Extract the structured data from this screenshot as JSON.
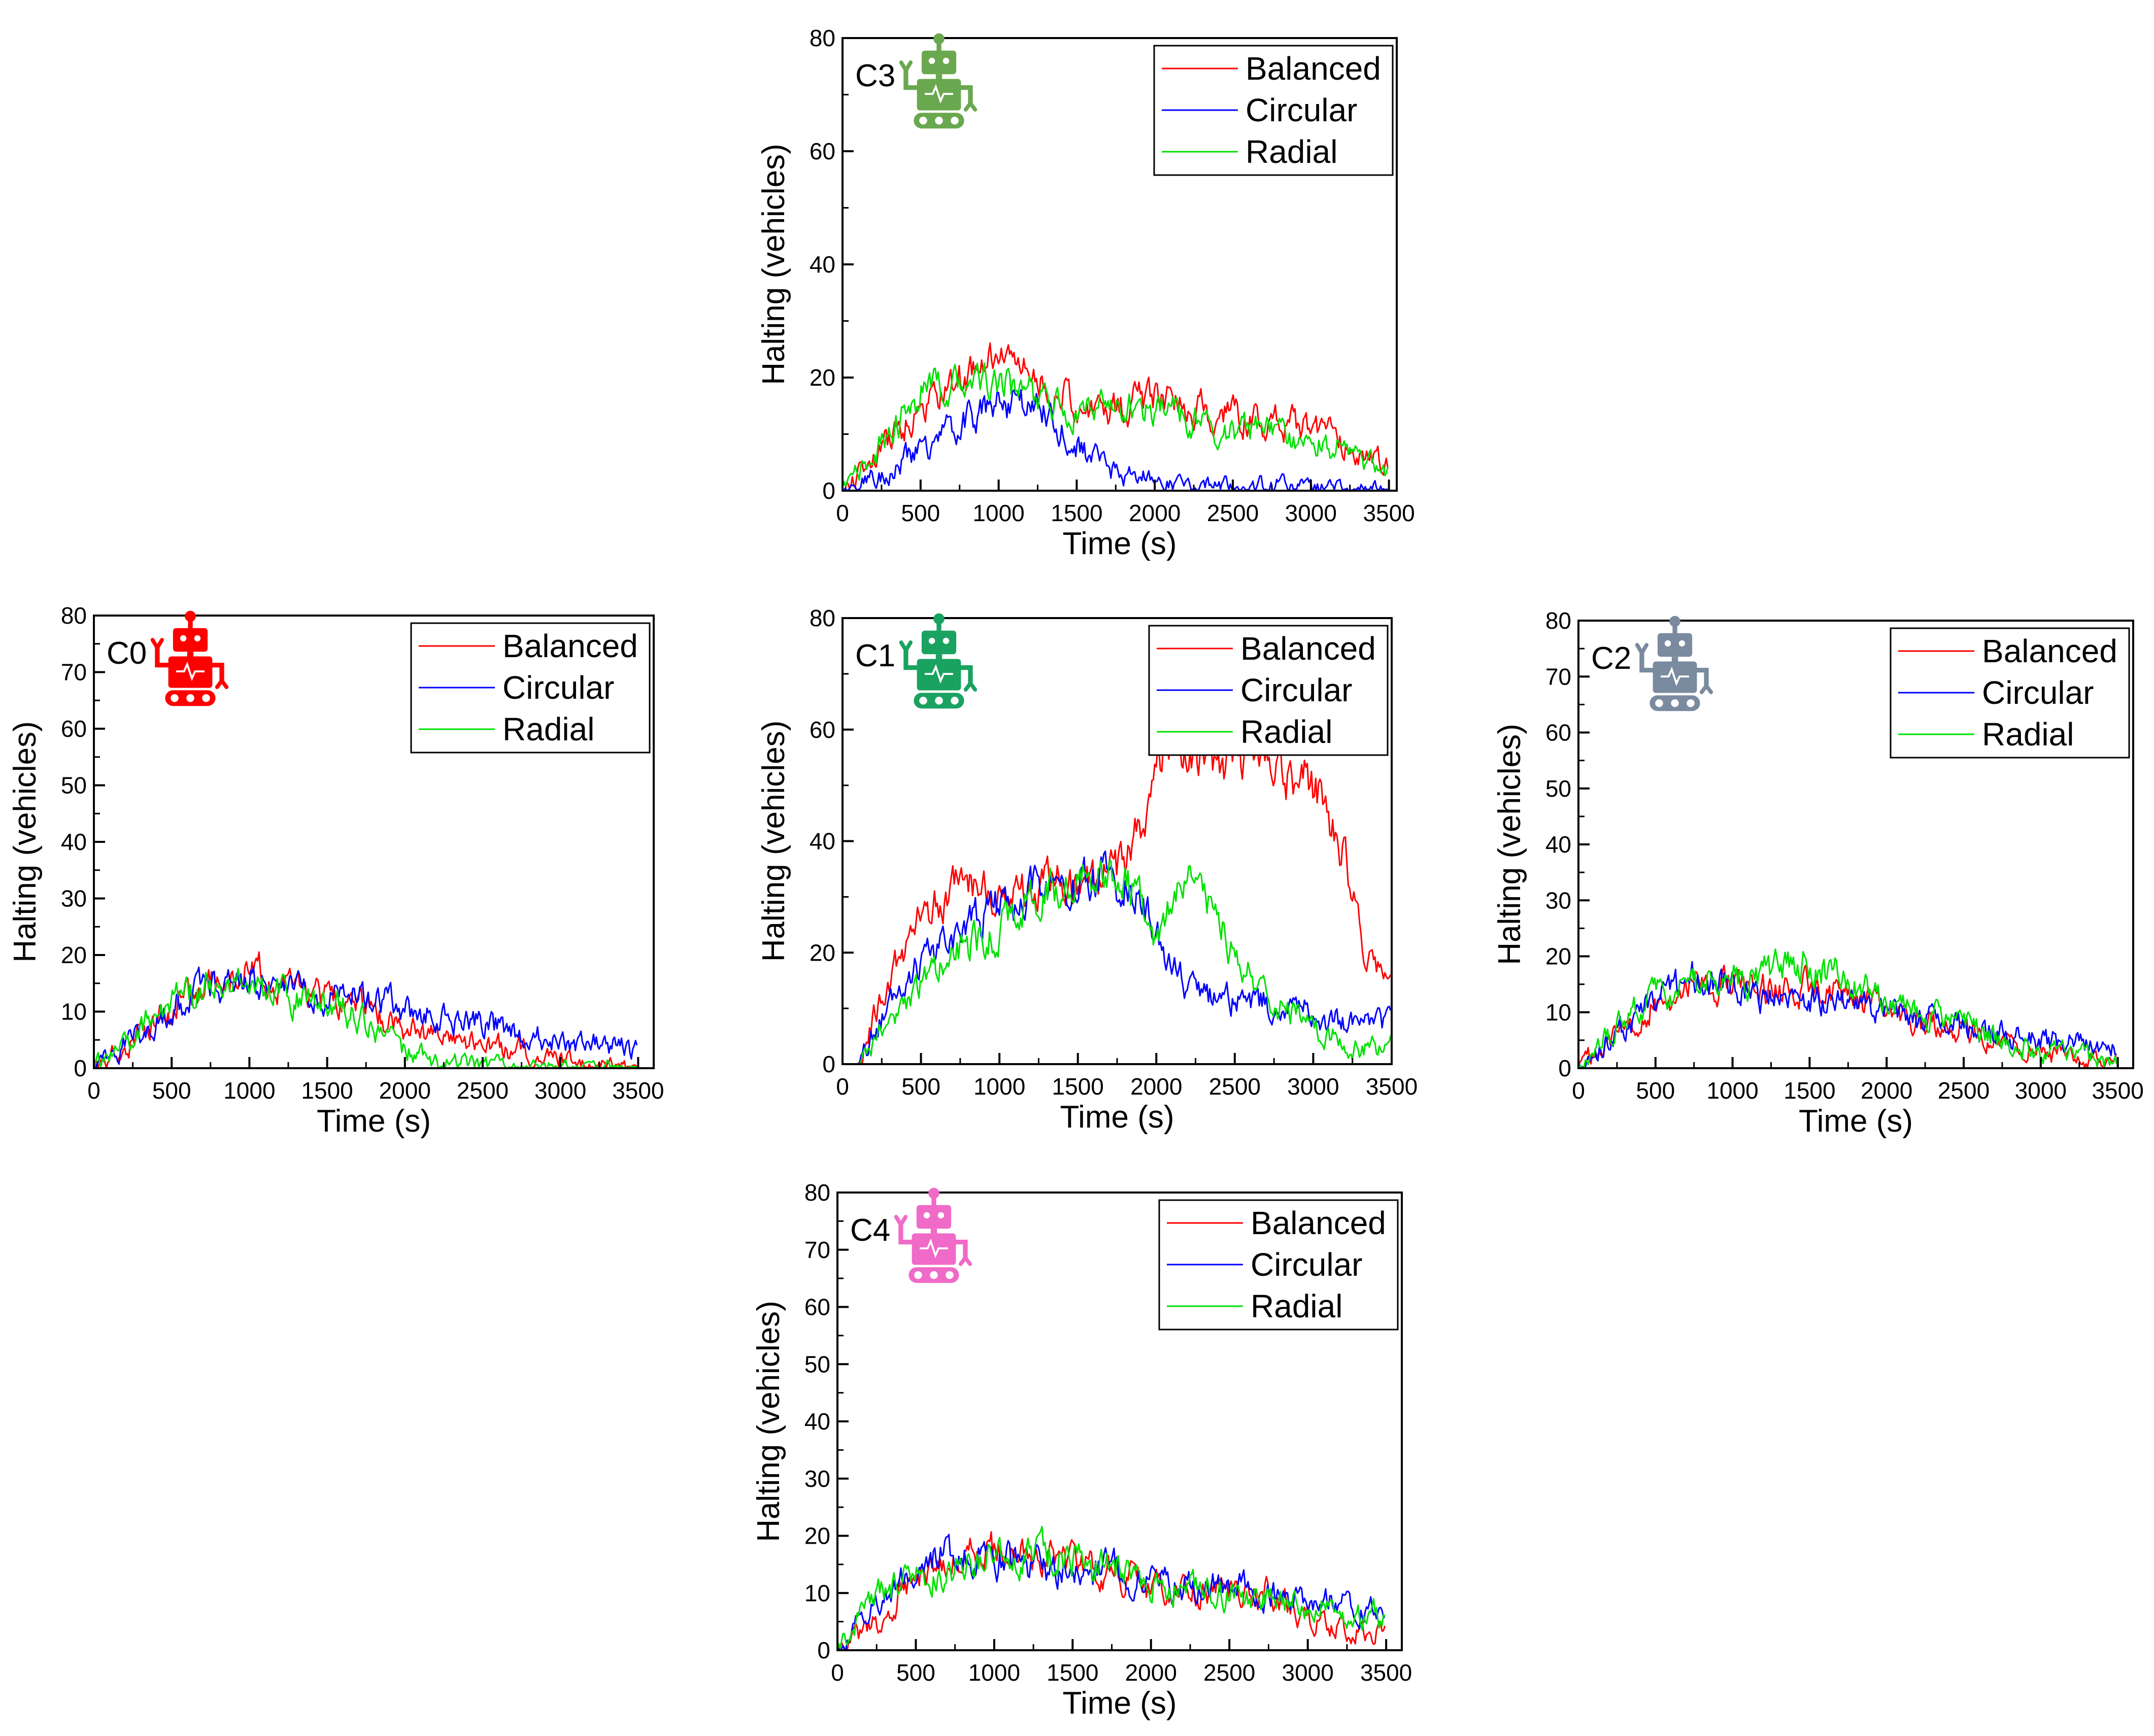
{
  "figure": {
    "series_styles": [
      {
        "name": "Balanced",
        "color": "#ff0000"
      },
      {
        "name": "Circular",
        "color": "#0000ff"
      },
      {
        "name": "Radial",
        "color": "#00e000"
      }
    ],
    "robot_icon": "robot-icon"
  },
  "chart_data": [
    {
      "id": "C3",
      "type": "line",
      "panel_label": "C3",
      "icon_color": "#6aa84f",
      "xlabel": "Time (s)",
      "ylabel": "Halting (vehicles)",
      "xlim": [
        0,
        3550
      ],
      "ylim": [
        0,
        80
      ],
      "x_ticks": [
        0,
        500,
        1000,
        1500,
        2000,
        2500,
        3000,
        3500
      ],
      "y_ticks": [
        0,
        20,
        40,
        60,
        80
      ],
      "legend": [
        "Balanced",
        "Circular",
        "Radial"
      ],
      "legend_position": "top-right",
      "x": [
        0,
        250,
        500,
        750,
        1000,
        1250,
        1500,
        1750,
        2000,
        2250,
        2500,
        2750,
        3000,
        3250,
        3500
      ],
      "series": [
        {
          "name": "Balanced",
          "values": [
            0,
            7,
            15,
            19,
            24,
            20,
            15,
            14,
            17,
            15,
            13,
            12,
            11,
            8,
            4
          ]
        },
        {
          "name": "Circular",
          "values": [
            0,
            3,
            7,
            12,
            15,
            15,
            8,
            3,
            2,
            1,
            1,
            1,
            0.5,
            0.5,
            0
          ]
        },
        {
          "name": "Radial",
          "values": [
            0,
            8,
            17,
            19,
            19,
            16,
            14,
            15,
            15,
            12,
            11,
            10,
            9,
            7,
            3
          ]
        }
      ]
    },
    {
      "id": "C0",
      "type": "line",
      "panel_label": "C0",
      "icon_color": "#ff0000",
      "xlabel": "Time (s)",
      "ylabel": "Halting (vehicles)",
      "xlim": [
        0,
        3600
      ],
      "ylim": [
        0,
        80
      ],
      "x_ticks": [
        0,
        500,
        1000,
        1500,
        2000,
        2500,
        3000,
        3500
      ],
      "y_ticks": [
        0,
        10,
        20,
        30,
        40,
        50,
        60,
        70,
        80
      ],
      "legend": [
        "Balanced",
        "Circular",
        "Radial"
      ],
      "legend_position": "top-right",
      "x": [
        0,
        250,
        500,
        750,
        1000,
        1250,
        1500,
        1750,
        2000,
        2250,
        2500,
        2750,
        3000,
        3250,
        3500
      ],
      "series": [
        {
          "name": "Balanced",
          "values": [
            0,
            5,
            11,
            15,
            18,
            14,
            12,
            10,
            7,
            5,
            4,
            3,
            2,
            1,
            0
          ]
        },
        {
          "name": "Circular",
          "values": [
            0,
            5,
            11,
            14,
            16,
            14,
            12,
            13,
            10,
            9,
            8,
            6,
            5,
            4,
            3
          ]
        },
        {
          "name": "Radial",
          "values": [
            0,
            6,
            12,
            15,
            15,
            12,
            12,
            8,
            3,
            1,
            1,
            0,
            0,
            0,
            0
          ]
        }
      ]
    },
    {
      "id": "C1",
      "type": "line",
      "panel_label": "C1",
      "icon_color": "#1aa260",
      "xlabel": "Time (s)",
      "ylabel": "Halting (vehicles)",
      "xlim": [
        0,
        3500
      ],
      "ylim": [
        0,
        80
      ],
      "x_ticks": [
        0,
        500,
        1000,
        1500,
        2000,
        2500,
        3000,
        3500
      ],
      "y_ticks": [
        0,
        20,
        40,
        60,
        80
      ],
      "legend": [
        "Balanced",
        "Circular",
        "Radial"
      ],
      "legend_position": "top-right",
      "x": [
        100,
        250,
        500,
        750,
        1000,
        1250,
        1500,
        1750,
        1900,
        2000,
        2100,
        2250,
        2500,
        2750,
        3000,
        3200,
        3300,
        3500
      ],
      "series": [
        {
          "name": "Balanced",
          "values": [
            0,
            12,
            27,
            32,
            31,
            33,
            33,
            35,
            42,
            55,
            57,
            54,
            55,
            54,
            50,
            38,
            22,
            13
          ]
        },
        {
          "name": "Circular",
          "values": [
            0,
            8,
            18,
            24,
            28,
            32,
            34,
            33,
            30,
            23,
            17,
            12,
            11,
            11,
            9,
            7,
            7,
            8
          ]
        },
        {
          "name": "Radial",
          "values": [
            0,
            6,
            14,
            20,
            24,
            30,
            33,
            33,
            31,
            22,
            28,
            35,
            19,
            11,
            7,
            4,
            3,
            3
          ]
        }
      ]
    },
    {
      "id": "C2",
      "type": "line",
      "panel_label": "C2",
      "icon_color": "#7a8a9f",
      "xlabel": "Time (s)",
      "ylabel": "Halting (vehicles)",
      "xlim": [
        0,
        3600
      ],
      "ylim": [
        0,
        80
      ],
      "x_ticks": [
        0,
        500,
        1000,
        1500,
        2000,
        2500,
        3000,
        3500
      ],
      "y_ticks": [
        0,
        10,
        20,
        30,
        40,
        50,
        60,
        70,
        80
      ],
      "legend": [
        "Balanced",
        "Circular",
        "Radial"
      ],
      "legend_position": "top-right",
      "x": [
        0,
        250,
        500,
        750,
        1000,
        1250,
        1500,
        1750,
        2000,
        2250,
        2500,
        2750,
        3000,
        3250,
        3500
      ],
      "series": [
        {
          "name": "Balanced",
          "values": [
            0,
            6,
            12,
            15,
            14,
            14,
            15,
            12,
            10,
            8,
            7,
            5,
            3,
            2,
            1
          ]
        },
        {
          "name": "Circular",
          "values": [
            0,
            6,
            12,
            16,
            15,
            12,
            12,
            12,
            10,
            9,
            7,
            6,
            5,
            4,
            4
          ]
        },
        {
          "name": "Radial",
          "values": [
            0,
            7,
            13,
            15,
            16,
            17,
            19,
            16,
            12,
            10,
            8,
            5,
            3,
            2,
            1
          ]
        }
      ]
    },
    {
      "id": "C4",
      "type": "line",
      "panel_label": "C4",
      "icon_color": "#f06ac8",
      "xlabel": "Time (s)",
      "ylabel": "Halting (vehicles)",
      "xlim": [
        0,
        3600
      ],
      "ylim": [
        0,
        80
      ],
      "x_ticks": [
        0,
        500,
        1000,
        1500,
        2000,
        2500,
        3000,
        3500
      ],
      "y_ticks": [
        0,
        10,
        20,
        30,
        40,
        50,
        60,
        70,
        80
      ],
      "legend": [
        "Balanced",
        "Circular",
        "Radial"
      ],
      "legend_position": "top-right",
      "x": [
        0,
        250,
        500,
        750,
        1000,
        1250,
        1500,
        1750,
        2000,
        2250,
        2500,
        2750,
        3000,
        3250,
        3500
      ],
      "series": [
        {
          "name": "Balanced",
          "values": [
            0,
            5,
            14,
            16,
            17,
            17,
            15,
            14,
            11,
            10,
            10,
            10,
            6,
            4,
            3
          ]
        },
        {
          "name": "Circular",
          "values": [
            0,
            8,
            15,
            17,
            16,
            15,
            14,
            14,
            12,
            11,
            11,
            10,
            10,
            8,
            6
          ]
        },
        {
          "name": "Radial",
          "values": [
            0,
            9,
            13,
            14,
            16,
            17,
            16,
            14,
            12,
            11,
            10,
            9,
            8,
            7,
            6
          ]
        }
      ]
    }
  ]
}
